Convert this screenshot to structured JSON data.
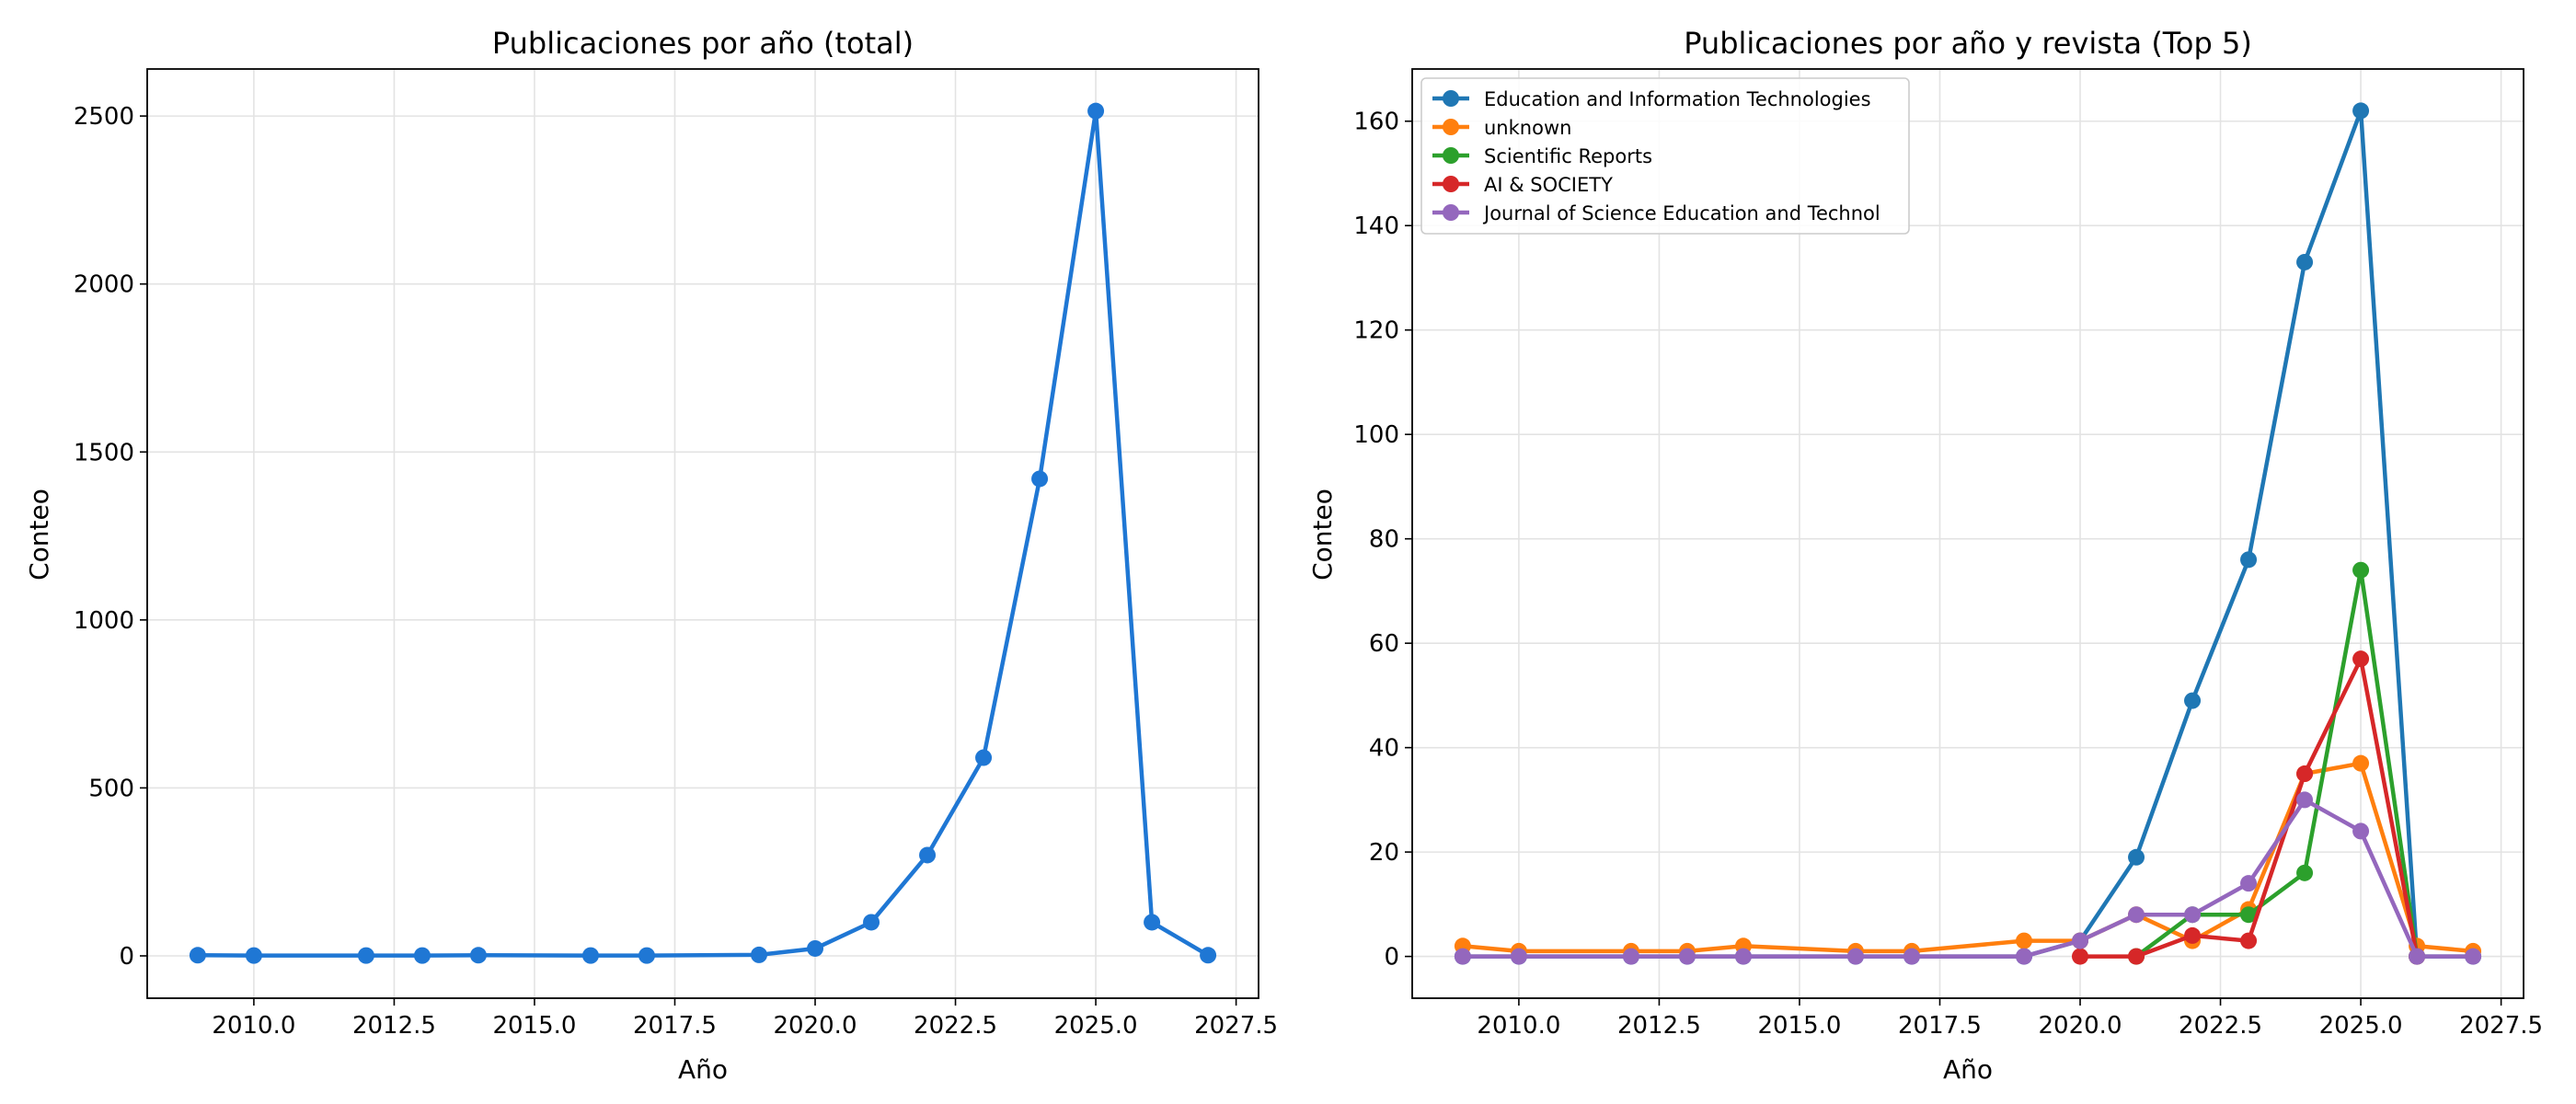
{
  "chart_data": [
    {
      "type": "line",
      "title": "Publicaciones por año (total)",
      "xlabel": "Año",
      "ylabel": "Conteo",
      "xlim": [
        2008.1,
        2027.9
      ],
      "ylim": [
        -126,
        2640
      ],
      "xticks": [
        "2010.0",
        "2012.5",
        "2015.0",
        "2017.5",
        "2020.0",
        "2022.5",
        "2025.0",
        "2027.5"
      ],
      "yticks": [
        "0",
        "500",
        "1000",
        "1500",
        "2000",
        "2500"
      ],
      "grid": true,
      "series": [
        {
          "color": "#1f77d4",
          "x": [
            2009,
            2010,
            2012,
            2013,
            2014,
            2016,
            2017,
            2019,
            2020,
            2021,
            2022,
            2023,
            2024,
            2025,
            2026,
            2027
          ],
          "y": [
            2,
            1,
            1,
            1,
            2,
            1,
            1,
            3,
            22,
            100,
            300,
            590,
            1420,
            2515,
            100,
            2
          ]
        }
      ]
    },
    {
      "type": "line",
      "title": "Publicaciones por año y revista (Top 5)",
      "xlabel": "Año",
      "ylabel": "Conteo",
      "xlim": [
        2008.1,
        2027.9
      ],
      "ylim": [
        -8,
        170
      ],
      "xticks": [
        "2010.0",
        "2012.5",
        "2015.0",
        "2017.5",
        "2020.0",
        "2022.5",
        "2025.0",
        "2027.5"
      ],
      "yticks": [
        "0",
        "20",
        "40",
        "60",
        "80",
        "100",
        "120",
        "140",
        "160"
      ],
      "grid": true,
      "legend": "top-left",
      "series": [
        {
          "name": "Education and Information Technologies",
          "color": "#1f77b4",
          "x": [
            2009,
            2010,
            2012,
            2013,
            2014,
            2016,
            2017,
            2019,
            2020,
            2021,
            2022,
            2023,
            2024,
            2025,
            2026,
            2027
          ],
          "y": [
            0,
            0,
            0,
            0,
            0,
            0,
            0,
            0,
            3,
            19,
            49,
            76,
            133,
            162,
            0,
            0
          ]
        },
        {
          "name": "unknown",
          "color": "#ff7f0e",
          "x": [
            2009,
            2010,
            2012,
            2013,
            2014,
            2016,
            2017,
            2019,
            2020,
            2021,
            2022,
            2023,
            2024,
            2025,
            2026,
            2027
          ],
          "y": [
            2,
            1,
            1,
            1,
            2,
            1,
            1,
            3,
            3,
            8,
            3,
            9,
            35,
            37,
            2,
            1
          ]
        },
        {
          "name": "Scientific Reports",
          "color": "#2ca02c",
          "x": [
            2021,
            2022,
            2023,
            2024,
            2025,
            2026
          ],
          "y": [
            0,
            8,
            8,
            16,
            74,
            0
          ]
        },
        {
          "name": "AI & SOCIETY",
          "color": "#d62728",
          "x": [
            2020,
            2021,
            2022,
            2023,
            2024,
            2025,
            2026
          ],
          "y": [
            0,
            0,
            4,
            3,
            35,
            57,
            0
          ]
        },
        {
          "name": "Journal of Science Education and Technol",
          "color": "#9467bd",
          "x": [
            2009,
            2010,
            2012,
            2013,
            2014,
            2016,
            2017,
            2019,
            2020,
            2021,
            2022,
            2023,
            2024,
            2025,
            2026,
            2027
          ],
          "y": [
            0,
            0,
            0,
            0,
            0,
            0,
            0,
            0,
            3,
            8,
            8,
            14,
            30,
            24,
            0,
            0
          ]
        }
      ]
    }
  ]
}
